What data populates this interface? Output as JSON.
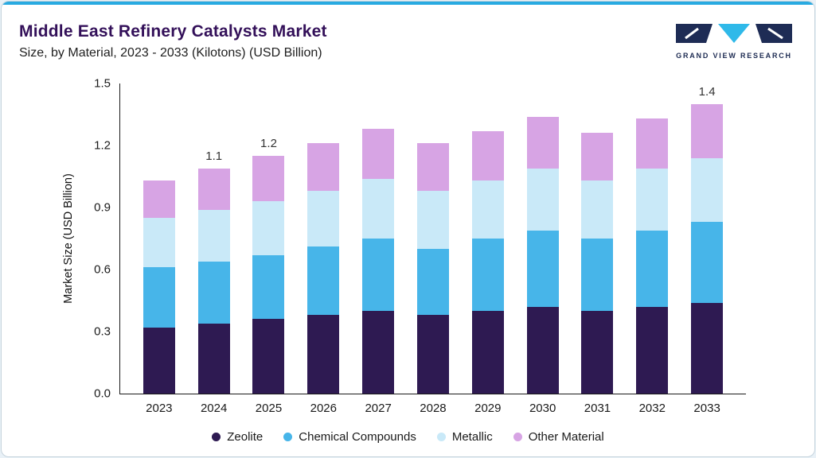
{
  "accent_color": "#29aae1",
  "header": {
    "title": "Middle East Refinery Catalysts Market",
    "subtitle": "Size, by Material, 2023 - 2033 (Kilotons) (USD Billion)",
    "logo_text": "GRAND VIEW RESEARCH"
  },
  "chart_data": {
    "type": "bar",
    "stacked": true,
    "title": "Middle East Refinery Catalysts Market Size, by Material, 2023 - 2033 (Kilotons) (USD Billion)",
    "xlabel": "",
    "ylabel": "Market Size (USD Billion)",
    "ylim": [
      0,
      1.5
    ],
    "yticks": [
      0.0,
      0.3,
      0.6,
      0.9,
      1.2,
      1.5
    ],
    "grid": false,
    "legend_position": "bottom",
    "categories": [
      "2023",
      "2024",
      "2025",
      "2026",
      "2027",
      "2028",
      "2029",
      "2030",
      "2031",
      "2032",
      "2033"
    ],
    "series": [
      {
        "name": "Zeolite",
        "color": "#2e1a52",
        "values": [
          0.32,
          0.34,
          0.36,
          0.38,
          0.4,
          0.38,
          0.4,
          0.42,
          0.4,
          0.42,
          0.44
        ]
      },
      {
        "name": "Chemical Compounds",
        "color": "#47b5e9",
        "values": [
          0.29,
          0.3,
          0.31,
          0.33,
          0.35,
          0.32,
          0.35,
          0.37,
          0.35,
          0.37,
          0.39
        ]
      },
      {
        "name": "Metallic",
        "color": "#c9e9f8",
        "values": [
          0.24,
          0.25,
          0.26,
          0.27,
          0.29,
          0.28,
          0.28,
          0.3,
          0.28,
          0.3,
          0.31
        ]
      },
      {
        "name": "Other Material",
        "color": "#d7a4e4",
        "values": [
          0.18,
          0.2,
          0.22,
          0.23,
          0.24,
          0.23,
          0.24,
          0.25,
          0.23,
          0.24,
          0.26
        ]
      }
    ],
    "bar_labels": [
      "",
      "1.1",
      "1.2",
      "",
      "",
      "",
      "",
      "",
      "",
      "",
      "1.4"
    ]
  }
}
